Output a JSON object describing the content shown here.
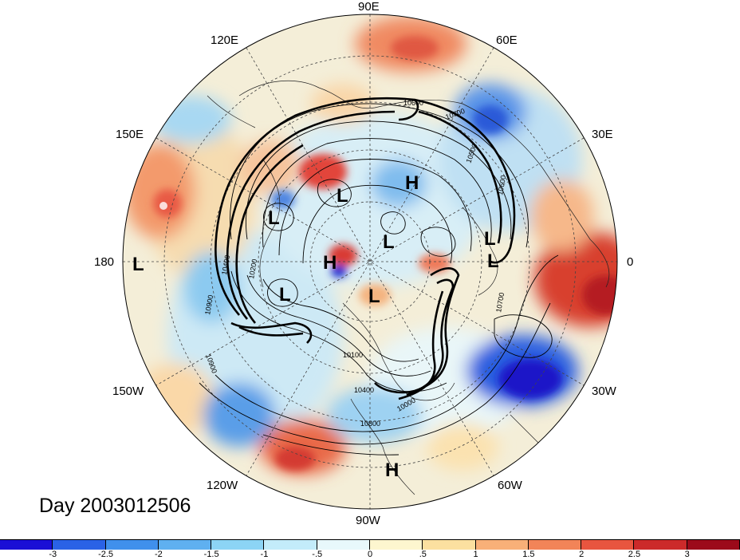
{
  "title": "Day 2003012506",
  "longitude_labels": {
    "n90E": "90E",
    "n120E": "120E",
    "n60E": "60E",
    "n150E": "150E",
    "n30E": "30E",
    "n180": "180",
    "n0": "0",
    "n150W": "150W",
    "n30W": "30W",
    "n120W": "120W",
    "n60W": "60W",
    "n90W": "90W"
  },
  "pressure_markers": {
    "h1": "H",
    "h2": "H",
    "h3": "H",
    "l1": "L",
    "l2": "L",
    "l3": "L",
    "l4": "L",
    "l5": "L",
    "l6": "L",
    "l7": "L",
    "l8": "L"
  },
  "contour_labels": {
    "c1": "10600",
    "c2": "10700",
    "c3": "10500",
    "c4": "10600",
    "c5": "10700",
    "c6": "10200",
    "c7": "10400",
    "c8": "10900",
    "c9": "10100",
    "c10": "10400",
    "c11": "10000",
    "c12": "10800",
    "c13": "10900"
  },
  "colorbar": {
    "colors": [
      "#1a0fd6",
      "#2a62e6",
      "#4090ec",
      "#5fb0f0",
      "#8cd4f5",
      "#c3ecfa",
      "#e8f8fb",
      "#fdf6cf",
      "#fbe0a0",
      "#f8b078",
      "#f28458",
      "#e8553f",
      "#cc2a2a",
      "#9c0a1a"
    ],
    "tick_labels": [
      "-3",
      "-2.5",
      "-2",
      "-1.5",
      "-1",
      "-.5",
      "0",
      ".5",
      "1",
      "1.5",
      "2",
      "2.5",
      "3"
    ]
  }
}
